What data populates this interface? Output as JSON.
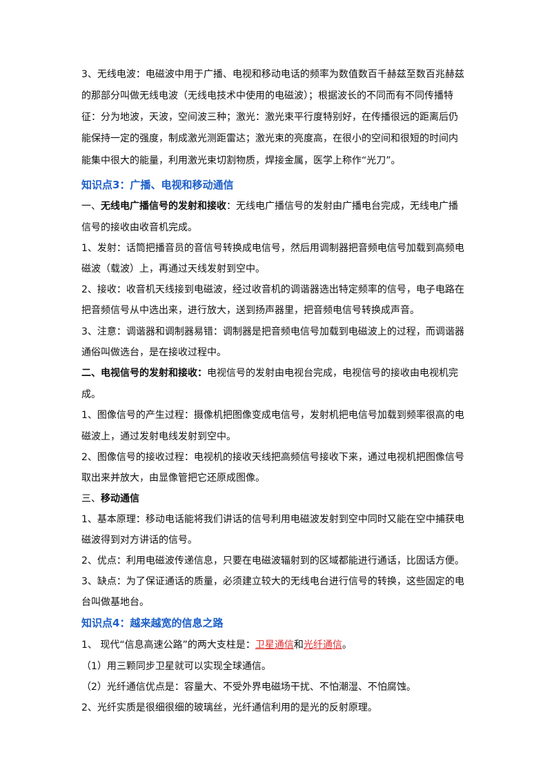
{
  "lines": [
    [
      "3、无线电波：电磁波中用于广播、电视和移动电话的频率为数值数百千赫兹至数百兆赫兹"
    ],
    [
      "的那部分叫做无线电波（无线电技术中使用的电磁波）；根据波长的不同而有不同传播特"
    ],
    [
      "征：分为地波，天波，空间波三种；激光：激光束平行度特别好，在传播很远的距离后仍"
    ],
    [
      "能保持一定的强度，制成激光测距雷达；激光束的亮度高，在很小的空间和很短的时间内"
    ],
    [
      "能集中很大的能量，利用激光束切割物质，焊接金属，医学上称作“光刀”。"
    ],
    [
      "知识点3：广播、电视和移动通信"
    ],
    [
      "一、",
      "无线电广播信号的发射和接收",
      "：无线电广播信号的发射由广播电台完成，无线电广播"
    ],
    [
      "信号的接收由收音机完成。"
    ],
    [
      "1、发射：话筒把播音员的音信号转换成电信号，然后用调制器把音频电信号加载到高频电"
    ],
    [
      "磁波（载波）上，再通过天线发射到空中。"
    ],
    [
      "2、接收：收音机天线接到电磁波，经过收音机的调谐器选出特定频率的信号，电子电路在"
    ],
    [
      "把音频信号从中选出来，进行放大，送到扬声器里，把音频电信号转换成声音。"
    ],
    [
      "3、注意：调谐器和调制器易错：调制器是把音频电信号加载到电磁波上的过程，而调谐器"
    ],
    [
      "通俗叫做选台，是在接收过程中。"
    ],
    [
      "二、电视信号的发射和接收：",
      "电视信号的发射由电视台完成，电视信号的接收由电视机完"
    ],
    [
      "成。"
    ],
    [
      "1、图像信号的产生过程：摄像机把图像变成电信号，发射机把电信号加载到频率很高的电"
    ],
    [
      "磁波上，通过发射电线发射到空中。"
    ],
    [
      "2、图像信号的接收过程：电视机的接收天线把高频信号接收下来，通过电视机把图像信号"
    ],
    [
      "取出来并放大，由显像管把它还原成图像。"
    ],
    [
      "三、",
      "移动通信"
    ],
    [
      "1、基本原理：移动电话能将我们讲话的信号利用电磁波发射到空中同时又能在空中捕获电"
    ],
    [
      "磁波得到对方讲话的信号。"
    ],
    [
      "2、优点：利用电磁波传递信息，只要在电磁波辐射到的区域都能进行通话，比固话方便。"
    ],
    [
      "3、缺点：为了保证通话的质量，必须建立较大的无线电台进行信号的转换，这些固定的电"
    ],
    [
      "台叫做基地台。"
    ],
    [
      "知识点4：越来越宽的信息之路"
    ],
    [
      "1、 现代“信息高速公路”的两大支柱是：",
      "卫星通信",
      "和",
      "光纤通信",
      "。"
    ],
    [
      "（1）用三颗同步卫星就可以实现全球通信。"
    ],
    [
      "（2）光纤通信优点是：容量大、不受外界电磁场干扰、不怕潮湿、不怕腐蚀。"
    ],
    [
      "2、光纤实质是很细很细的玻璃丝，光纤通信利用的是光的反射原理。"
    ]
  ]
}
